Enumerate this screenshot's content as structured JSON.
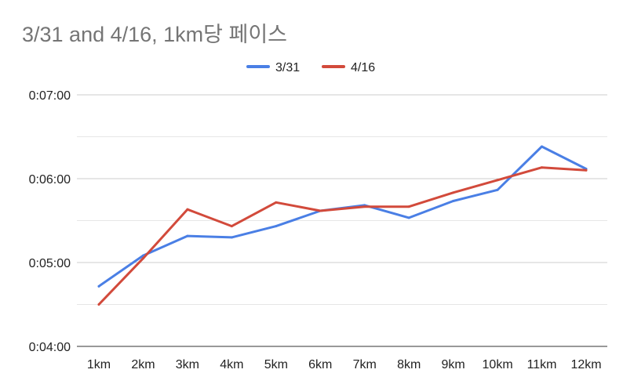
{
  "chart_data": {
    "type": "line",
    "title": "3/31 and 4/16, 1km당 페이스",
    "xlabel": "",
    "ylabel": "",
    "categories": [
      "1km",
      "2km",
      "3km",
      "4km",
      "5km",
      "6km",
      "7km",
      "8km",
      "9km",
      "10km",
      "11km",
      "12km"
    ],
    "y_ticks": [
      "0:04:00",
      "0:05:00",
      "0:06:00",
      "0:07:00"
    ],
    "ylim_seconds": [
      240,
      420
    ],
    "y_tick_seconds": [
      240,
      300,
      360,
      420
    ],
    "minor_gridline_seconds": [
      270,
      330,
      390
    ],
    "grid": true,
    "legend_position": "top-center",
    "series": [
      {
        "name": "3/31",
        "color": "#4a7fe5",
        "values_seconds": [
          283,
          305,
          319,
          318,
          326,
          337,
          341,
          332,
          344,
          352,
          383,
          367
        ]
      },
      {
        "name": "4/16",
        "color": "#d24a3b",
        "values_seconds": [
          270,
          303,
          338,
          326,
          343,
          337,
          340,
          340,
          350,
          359,
          368,
          366
        ]
      }
    ]
  }
}
